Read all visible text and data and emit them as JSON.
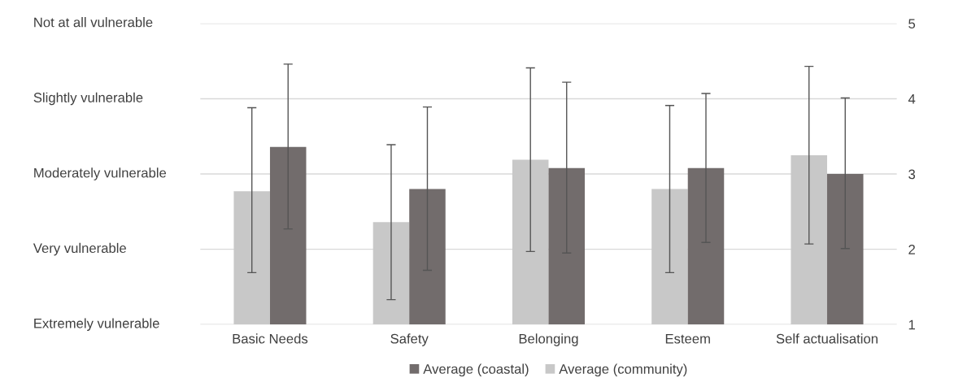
{
  "chart_data": {
    "type": "bar",
    "categories": [
      "Basic Needs",
      "Safety",
      "Belonging",
      "Esteem",
      "Self actualisation"
    ],
    "series": [
      {
        "name": "Average (community)",
        "color": "#c8c8c8",
        "values": [
          2.77,
          2.36,
          3.19,
          2.8,
          3.25
        ],
        "errors": [
          [
            1.69,
            3.88
          ],
          [
            1.33,
            3.39
          ],
          [
            1.97,
            4.41
          ],
          [
            1.69,
            3.91
          ],
          [
            2.07,
            4.43
          ]
        ]
      },
      {
        "name": "Average (coastal)",
        "color": "#726c6c",
        "values": [
          3.36,
          2.8,
          3.08,
          3.08,
          3.0
        ],
        "errors": [
          [
            2.27,
            4.46
          ],
          [
            1.72,
            3.89
          ],
          [
            1.95,
            4.22
          ],
          [
            2.09,
            4.07
          ],
          [
            2.01,
            4.01
          ]
        ]
      }
    ],
    "ylim": [
      1,
      5
    ],
    "yticks": [
      1,
      2,
      3,
      4,
      5
    ],
    "annotations": [
      "Extremely vulnerable",
      "Very vulnerable",
      "Moderately vulnerable",
      "Slightly vulnerable",
      "Not at all vulnerable"
    ],
    "grid": "y",
    "legend": "bottom"
  }
}
